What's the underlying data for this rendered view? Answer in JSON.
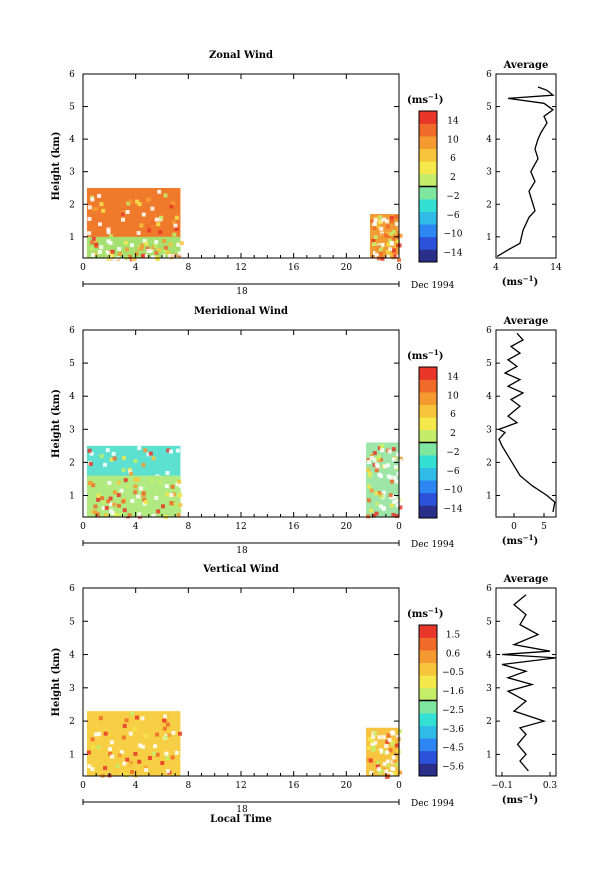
{
  "chart_data": [
    {
      "type": "heatmap",
      "title": "Zonal Wind",
      "ylabel": "Height (km)",
      "xlabel": "",
      "x_ticks": [
        "0",
        "4",
        "8",
        "12",
        "16",
        "20",
        "0"
      ],
      "y_ticks": [
        "1",
        "2",
        "3",
        "4",
        "5",
        "6"
      ],
      "xlim": [
        0,
        24
      ],
      "ylim": [
        0.35,
        6
      ],
      "date_day": "18",
      "date_label": "Dec 1994",
      "colorbar": {
        "unit": "(ms",
        "unit_exp": "−1",
        "ticks": [
          "14",
          "10",
          "6",
          "2",
          "−2",
          "−6",
          "−10",
          "−14"
        ],
        "range": [
          -16,
          16
        ]
      },
      "data_blocks": [
        {
          "t": [
            0.3,
            7.4
          ],
          "h": [
            0.35,
            2.5
          ],
          "fill": "#f07a2c"
        },
        {
          "t": [
            0.3,
            7.4
          ],
          "h": [
            0.35,
            1.0
          ],
          "fill": "#a6e070"
        },
        {
          "t": [
            21.8,
            24.0
          ],
          "h": [
            0.35,
            1.7
          ],
          "fill": "#f29a33"
        }
      ],
      "average": {
        "title": "Average",
        "xlim": [
          4,
          14
        ],
        "x_ticks": [
          "4",
          "14"
        ],
        "ylim": [
          0.35,
          6
        ],
        "unit": "(ms",
        "unit_exp": "−1",
        "profile": [
          [
            4.2,
            0.4
          ],
          [
            6,
            0.6
          ],
          [
            8,
            0.8
          ],
          [
            8.5,
            1.2
          ],
          [
            9.5,
            1.6
          ],
          [
            10.5,
            1.8
          ],
          [
            10,
            2.1
          ],
          [
            9.5,
            2.4
          ],
          [
            10.5,
            2.7
          ],
          [
            9.8,
            3.0
          ],
          [
            11,
            3.4
          ],
          [
            10.5,
            3.7
          ],
          [
            11,
            4.0
          ],
          [
            11.5,
            4.2
          ],
          [
            12.5,
            4.5
          ],
          [
            12,
            4.7
          ],
          [
            13.5,
            4.9
          ],
          [
            12,
            5.1
          ],
          [
            6,
            5.25
          ],
          [
            13.5,
            5.35
          ],
          [
            12.5,
            5.5
          ],
          [
            11,
            5.6
          ]
        ]
      }
    },
    {
      "type": "heatmap",
      "title": "Meridional Wind",
      "ylabel": "Height (km)",
      "xlabel": "",
      "x_ticks": [
        "0",
        "4",
        "8",
        "12",
        "16",
        "20",
        "0"
      ],
      "y_ticks": [
        "1",
        "2",
        "3",
        "4",
        "5",
        "6"
      ],
      "xlim": [
        0,
        24
      ],
      "ylim": [
        0.35,
        6
      ],
      "date_day": "18",
      "date_label": "Dec 1994",
      "colorbar": {
        "unit": "(ms",
        "unit_exp": "−1",
        "ticks": [
          "14",
          "10",
          "6",
          "2",
          "−2",
          "−6",
          "−10",
          "−14"
        ],
        "range": [
          -16,
          16
        ]
      },
      "data_blocks": [
        {
          "t": [
            0.3,
            7.4
          ],
          "h": [
            0.35,
            2.5
          ],
          "fill": "#5ee0d0"
        },
        {
          "t": [
            0.3,
            7.4
          ],
          "h": [
            0.35,
            1.6
          ],
          "fill": "#b0ea80"
        },
        {
          "t": [
            21.5,
            24.0
          ],
          "h": [
            0.35,
            2.6
          ],
          "fill": "#9de6a8"
        }
      ],
      "average": {
        "title": "Average",
        "xlim": [
          -3,
          7
        ],
        "x_ticks": [
          "0",
          "5"
        ],
        "ylim": [
          0.35,
          6
        ],
        "unit": "(ms",
        "unit_exp": "−1",
        "profile": [
          [
            6.5,
            0.5
          ],
          [
            6.8,
            0.8
          ],
          [
            5.5,
            1.0
          ],
          [
            3,
            1.3
          ],
          [
            1,
            1.6
          ],
          [
            0,
            1.9
          ],
          [
            -1,
            2.2
          ],
          [
            -2,
            2.5
          ],
          [
            -2.5,
            2.7
          ],
          [
            -1.5,
            2.9
          ],
          [
            -2.5,
            3.0
          ],
          [
            0.5,
            3.2
          ],
          [
            -1,
            3.4
          ],
          [
            1,
            3.7
          ],
          [
            -0.5,
            3.9
          ],
          [
            1.5,
            4.1
          ],
          [
            -1,
            4.3
          ],
          [
            1,
            4.5
          ],
          [
            -1.5,
            4.7
          ],
          [
            0.5,
            4.9
          ],
          [
            -1,
            5.1
          ],
          [
            1,
            5.3
          ],
          [
            -0.5,
            5.5
          ],
          [
            1.5,
            5.7
          ],
          [
            0.5,
            5.9
          ]
        ]
      }
    },
    {
      "type": "heatmap",
      "title": "Vertical Wind",
      "ylabel": "Height (km)",
      "xlabel": "Local Time",
      "x_ticks": [
        "0",
        "4",
        "8",
        "12",
        "16",
        "20",
        "0"
      ],
      "y_ticks": [
        "1",
        "2",
        "3",
        "4",
        "5",
        "6"
      ],
      "xlim": [
        0,
        24
      ],
      "ylim": [
        0.35,
        6
      ],
      "date_day": "18",
      "date_label": "Dec 1994",
      "colorbar": {
        "unit": "(ms",
        "unit_exp": "−1",
        "ticks": [
          "1.5",
          "0.6",
          "−0.5",
          "−1.6",
          "−2.5",
          "−3.6",
          "−4.5",
          "−5.6"
        ],
        "range": [
          -6,
          2
        ]
      },
      "data_blocks": [
        {
          "t": [
            0.3,
            7.4
          ],
          "h": [
            0.35,
            2.3
          ],
          "fill": "#f7cf45"
        },
        {
          "t": [
            21.5,
            24.0
          ],
          "h": [
            0.35,
            1.8
          ],
          "fill": "#f6c440"
        }
      ],
      "average": {
        "title": "Average",
        "xlim": [
          -0.15,
          0.35
        ],
        "x_ticks": [
          "−0.1",
          "0.3"
        ],
        "ylim": [
          0.35,
          6
        ],
        "unit": "(ms",
        "unit_exp": "−1",
        "profile": [
          [
            0.12,
            0.5
          ],
          [
            0.05,
            0.8
          ],
          [
            0.1,
            1.0
          ],
          [
            0.03,
            1.3
          ],
          [
            0.1,
            1.6
          ],
          [
            0.05,
            1.8
          ],
          [
            0.25,
            2.0
          ],
          [
            0.0,
            2.3
          ],
          [
            0.1,
            2.6
          ],
          [
            -0.05,
            2.9
          ],
          [
            0.15,
            3.1
          ],
          [
            -0.05,
            3.3
          ],
          [
            0.1,
            3.5
          ],
          [
            -0.1,
            3.7
          ],
          [
            0.35,
            3.9
          ],
          [
            -0.1,
            4.0
          ],
          [
            0.3,
            4.1
          ],
          [
            0.0,
            4.3
          ],
          [
            0.2,
            4.6
          ],
          [
            0.05,
            4.9
          ],
          [
            0.1,
            5.2
          ],
          [
            0.0,
            5.5
          ],
          [
            0.1,
            5.8
          ]
        ]
      }
    }
  ]
}
